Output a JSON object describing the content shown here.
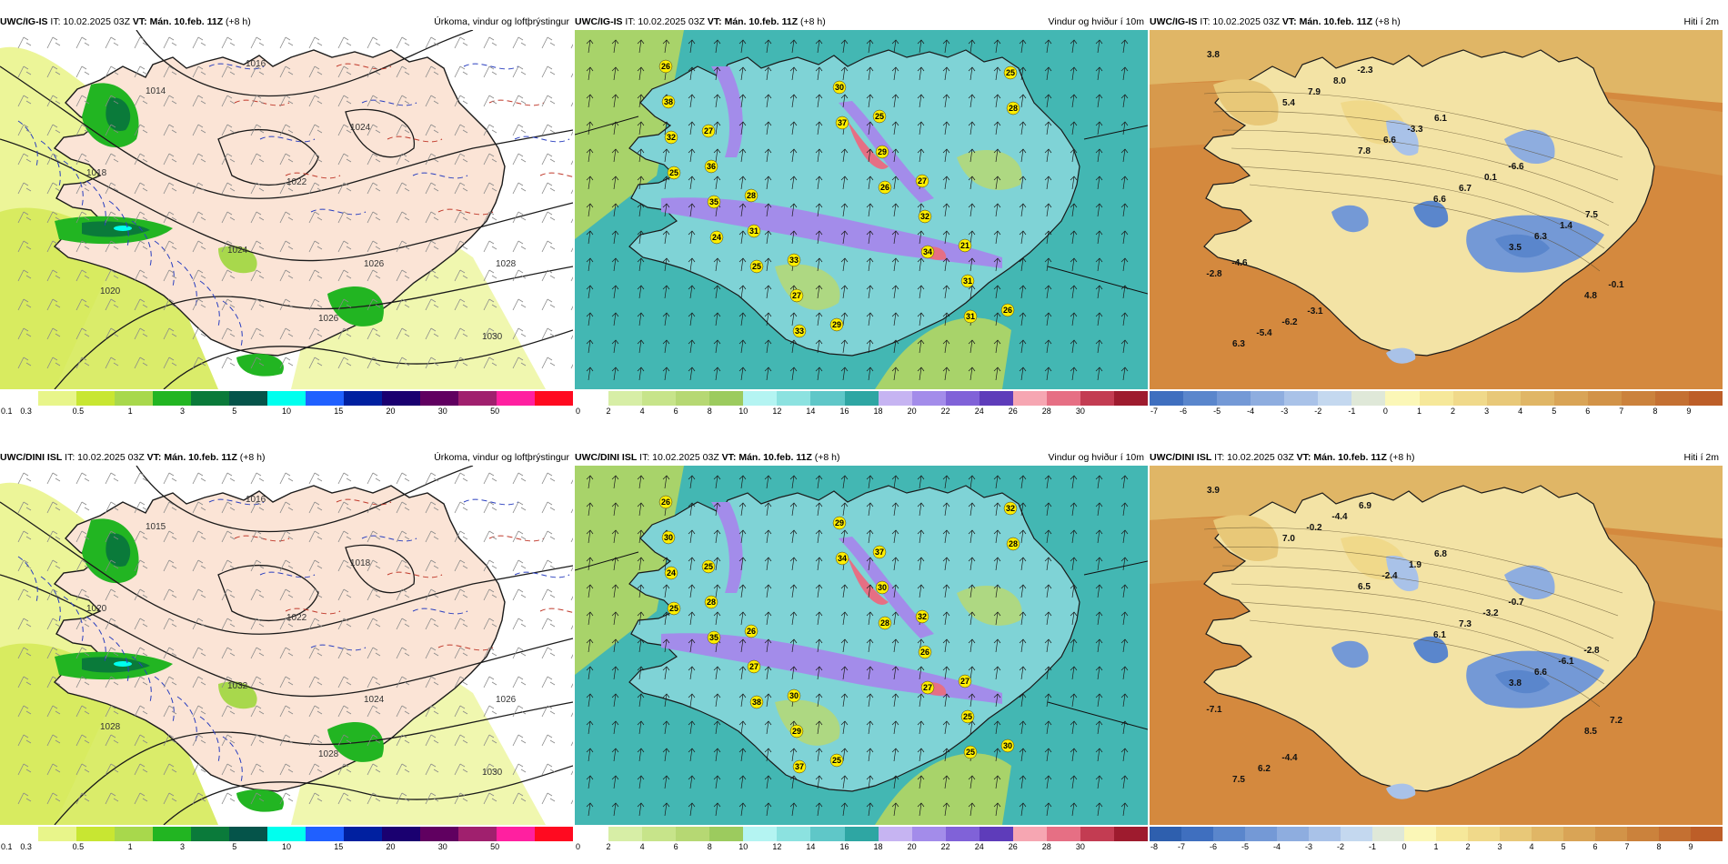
{
  "runs": [
    {
      "model": "UWC/IG-IS",
      "it_text": "IT: 10.02.2025 03Z",
      "vt_text": "VT: Mán. 10.feb. 11Z",
      "lead_text": "(+8 h)",
      "pressure_labels": [
        "1014",
        "1018",
        "1016",
        "1022",
        "1024",
        "1026",
        "1028",
        "1020",
        "1030",
        "1024",
        "1026"
      ],
      "wind_labels": [
        "26",
        "27",
        "28",
        "33",
        "29",
        "25",
        "27",
        "21",
        "26",
        "38",
        "36",
        "31",
        "27",
        "30",
        "29",
        "32",
        "31",
        "25",
        "32",
        "35",
        "25",
        "33",
        "37",
        "26",
        "34",
        "31",
        "28",
        "25",
        "24"
      ],
      "temp_labels": [
        "3.8",
        "5.4",
        "7.8",
        "6.6",
        "3.5",
        "4.8",
        "6.3",
        "7.9",
        "6.6",
        "6.7",
        "6.3",
        "-0.1",
        "-5.4",
        "8.0",
        "-3.3",
        "0.1",
        "1.4",
        "-2.8",
        "-6.2",
        "-2.3",
        "6.1",
        "-6.6",
        "7.5",
        "-4.6",
        "-3.1"
      ]
    },
    {
      "model": "UWC/DINI ISL",
      "it_text": "IT: 10.02.2025 03Z",
      "vt_text": "VT: Mán. 10.feb. 11Z",
      "lead_text": "(+8 h)",
      "pressure_labels": [
        "1015",
        "1020",
        "1016",
        "1022",
        "1018",
        "1024",
        "1026",
        "1028",
        "1030",
        "1032",
        "1028"
      ],
      "wind_labels": [
        "26",
        "25",
        "26",
        "30",
        "25",
        "37",
        "32",
        "27",
        "30",
        "30",
        "28",
        "27",
        "29",
        "29",
        "30",
        "26",
        "25",
        "32",
        "24",
        "35",
        "38",
        "37",
        "34",
        "28",
        "27",
        "25",
        "28",
        "25"
      ],
      "temp_labels": [
        "3.9",
        "7.0",
        "6.5",
        "6.1",
        "3.8",
        "8.5",
        "7.5",
        "-0.2",
        "-2.4",
        "7.3",
        "6.6",
        "7.2",
        "6.2",
        "-4.4",
        "1.9",
        "-3.2",
        "-6.1",
        "-7.1",
        "-4.4",
        "6.9",
        "6.8",
        "-0.7",
        "-2.8"
      ]
    }
  ],
  "panels": {
    "precip": {
      "title": "Úrkoma, vindur og loftþrýstingur",
      "legend_colors": [
        "#ffffff",
        "#e8f58a",
        "#c8e632",
        "#a8d84c",
        "#22b522",
        "#0a7a3a",
        "#05544a",
        "#00ffee",
        "#2060ff",
        "#0020a0",
        "#1a0070",
        "#600060",
        "#a0206e",
        "#ff20a0",
        "#ff0a20"
      ],
      "legend_ticks": [
        "0.1",
        "0.3",
        "0.5",
        "1",
        "3",
        "5",
        "10",
        "15",
        "20",
        "30",
        "50"
      ]
    },
    "wind": {
      "title": "Vindur og hviður í 10m",
      "legend_colors": [
        "#ffffff",
        "#d7eea6",
        "#c7e48a",
        "#b6d873",
        "#9ccb5e",
        "#b4f4f2",
        "#8ce2e0",
        "#5fc7c8",
        "#2ea6a3",
        "#c6b4f2",
        "#a38cea",
        "#8062d8",
        "#5e3cba",
        "#f6a6b2",
        "#e66f84",
        "#c33c52",
        "#9e1b2e"
      ],
      "legend_ticks": [
        "0",
        "2",
        "4",
        "6",
        "8",
        "10",
        "12",
        "14",
        "16",
        "18",
        "20",
        "22",
        "24",
        "26",
        "28",
        "30"
      ]
    },
    "temp_top": {
      "title": "Hiti í 2m",
      "legend_colors": [
        "#3f6fbf",
        "#5a86cc",
        "#7499d6",
        "#8eaddf",
        "#a9c2e8",
        "#c4d8ef",
        "#dfe8d8",
        "#fbf7b7",
        "#f6e89a",
        "#f0d98a",
        "#e8c878",
        "#e0b666",
        "#d9a456",
        "#d29348",
        "#cb823c",
        "#c47032",
        "#bd5e28"
      ],
      "legend_ticks": [
        "-7",
        "-6",
        "-5",
        "-4",
        "-3",
        "-2",
        "-1",
        "0",
        "1",
        "2",
        "3",
        "4",
        "5",
        "6",
        "7",
        "8",
        "9"
      ]
    },
    "temp_bottom": {
      "title": "Hiti í 2m",
      "legend_colors": [
        "#2e5fae",
        "#3f6fbf",
        "#5a86cc",
        "#7499d6",
        "#8eaddf",
        "#a9c2e8",
        "#c4d8ef",
        "#dfe8d8",
        "#fbf7b7",
        "#f6e89a",
        "#f0d98a",
        "#e8c878",
        "#e0b666",
        "#d9a456",
        "#d29348",
        "#cb823c",
        "#c47032",
        "#bd5e28"
      ],
      "legend_ticks": [
        "-8",
        "-7",
        "-6",
        "-5",
        "-4",
        "-3",
        "-2",
        "-1",
        "0",
        "1",
        "2",
        "3",
        "4",
        "5",
        "6",
        "7",
        "8",
        "9"
      ]
    }
  },
  "palette": {
    "sea_precip": "#ffffff",
    "land_pink": "#fbe4d6",
    "sea_wind": "#43b7b3",
    "land_wind": "#7fd3d6",
    "sea_temp": "#d4893e",
    "land_temp": "#f3e3a5",
    "label_yellow": "#ffee00",
    "coast": "#1a1a1a"
  }
}
